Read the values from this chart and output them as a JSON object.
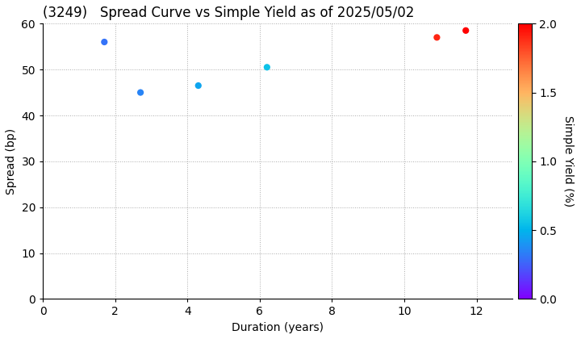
{
  "title": "(3249)   Spread Curve vs Simple Yield as of 2025/05/02",
  "xlabel": "Duration (years)",
  "ylabel": "Spread (bp)",
  "colorbar_label": "Simple Yield (%)",
  "points": [
    {
      "duration": 1.7,
      "spread": 56,
      "simple_yield": 0.3
    },
    {
      "duration": 2.7,
      "spread": 45,
      "simple_yield": 0.35
    },
    {
      "duration": 4.3,
      "spread": 46.5,
      "simple_yield": 0.45
    },
    {
      "duration": 6.2,
      "spread": 50.5,
      "simple_yield": 0.55
    },
    {
      "duration": 10.9,
      "spread": 57,
      "simple_yield": 1.9
    },
    {
      "duration": 11.7,
      "spread": 58.5,
      "simple_yield": 2.05
    }
  ],
  "xlim": [
    0,
    13
  ],
  "ylim": [
    0,
    60
  ],
  "xticks": [
    0,
    2,
    4,
    6,
    8,
    10,
    12
  ],
  "yticks": [
    0,
    10,
    20,
    30,
    40,
    50,
    60
  ],
  "colorbar_vmin": 0.0,
  "colorbar_vmax": 2.0,
  "colorbar_ticks": [
    0.0,
    0.5,
    1.0,
    1.5,
    2.0
  ],
  "grid_color": "#aaaaaa",
  "bg_color": "#ffffff",
  "marker_size": 35,
  "title_fontsize": 12,
  "label_fontsize": 10,
  "tick_fontsize": 10,
  "colorbar_fontsize": 10
}
